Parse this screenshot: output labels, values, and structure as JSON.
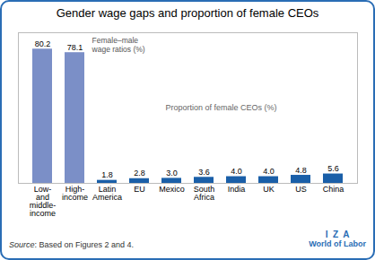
{
  "chart_data": {
    "type": "bar",
    "title": "Gender wage gaps and proportion of female CEOs",
    "categories": [
      "Low-\nand\nmiddle-\nincome",
      "High-\nincome",
      "Latin\nAmerica",
      "EU",
      "Mexico",
      "South\nAfrica",
      "India",
      "UK",
      "US",
      "China"
    ],
    "values": [
      80.2,
      78.1,
      1.8,
      2.8,
      3.0,
      3.6,
      4.0,
      4.0,
      4.8,
      5.6
    ],
    "value_labels": [
      "80.2",
      "78.1",
      "1.8",
      "2.8",
      "3.0",
      "3.6",
      "4.0",
      "4.0",
      "4.8",
      "5.6"
    ],
    "colors": [
      "#7b8fc7",
      "#7b8fc7",
      "#1a5fa8",
      "#1a5fa8",
      "#1a5fa8",
      "#1a5fa8",
      "#1a5fa8",
      "#1a5fa8",
      "#1a5fa8",
      "#1a5fa8"
    ],
    "ylim": [
      0,
      90
    ],
    "yticks": [],
    "tick_labels": "x",
    "data_labels": true,
    "grid": false,
    "annotations": [
      "Female–male\nwage ratios (%)",
      "Proportion of female CEOs (%)"
    ],
    "source_label": "Source",
    "source_text": ": Based on Figures 2 and 4.",
    "branding": {
      "texts": [
        "I  Z  A",
        "World of Labor"
      ],
      "color": "#2a6db5"
    }
  }
}
